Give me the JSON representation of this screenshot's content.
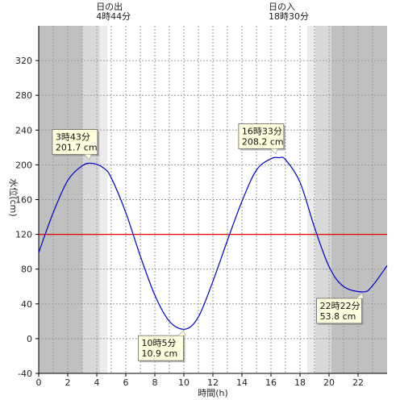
{
  "chart_data": {
    "type": "line",
    "xlabel": "時間(h)",
    "ylabel": "水位(cm)",
    "xlim": [
      0,
      24
    ],
    "ylim": [
      -40,
      360
    ],
    "xticks": [
      0,
      2,
      4,
      6,
      8,
      10,
      12,
      14,
      16,
      18,
      20,
      22
    ],
    "yticks": [
      -40,
      0,
      40,
      80,
      120,
      160,
      200,
      240,
      280,
      320
    ],
    "reference_level": 120,
    "sunrise": {
      "label": "日の出",
      "time_label": "4時44分",
      "hour": 4.733
    },
    "sunset": {
      "label": "日の入",
      "time_label": "18時30分",
      "hour": 18.5
    },
    "twilight_bands": [
      {
        "from": 0,
        "to": 3.0,
        "shade": "#c0c0c0"
      },
      {
        "from": 3.0,
        "to": 4.2,
        "shade": "#d8d8d8"
      },
      {
        "from": 4.2,
        "to": 4.733,
        "shade": "#ececec"
      },
      {
        "from": 18.5,
        "to": 19.05,
        "shade": "#ececec"
      },
      {
        "from": 19.05,
        "to": 20.15,
        "shade": "#d8d8d8"
      },
      {
        "from": 20.15,
        "to": 24,
        "shade": "#c0c0c0"
      }
    ],
    "series": [
      {
        "color": "#0000cc",
        "x": [
          0,
          1,
          2,
          3,
          3.717,
          4.5,
          5,
          6,
          7,
          8,
          9,
          10.083,
          11,
          12,
          13,
          14,
          15,
          16,
          16.55,
          17,
          18,
          19,
          20,
          21,
          22.367,
          23,
          24
        ],
        "y": [
          99,
          145,
          182,
          199,
          201.7,
          196,
          185,
          145,
          95,
          50,
          20,
          10.9,
          25,
          66,
          113,
          158,
          194,
          207,
          208.2,
          206,
          180,
          128,
          83,
          60,
          53.8,
          61,
          84
        ]
      }
    ],
    "annotations": [
      {
        "time": "3時43分",
        "value": "201.7 cm",
        "x": 3.717,
        "y": 201.7,
        "place": "above-left"
      },
      {
        "time": "10時5分",
        "value": "10.9 cm",
        "x": 10.083,
        "y": 10.9,
        "place": "below-left"
      },
      {
        "time": "16時33分",
        "value": "208.2 cm",
        "x": 16.55,
        "y": 208.2,
        "place": "above-left"
      },
      {
        "time": "22時22分",
        "value": "53.8 cm",
        "x": 22.367,
        "y": 53.8,
        "place": "below-left"
      }
    ],
    "colors": {
      "reference_line": "#dd0000",
      "callout_fill": "#ffffe0",
      "grid": "#9a9a9a"
    }
  }
}
